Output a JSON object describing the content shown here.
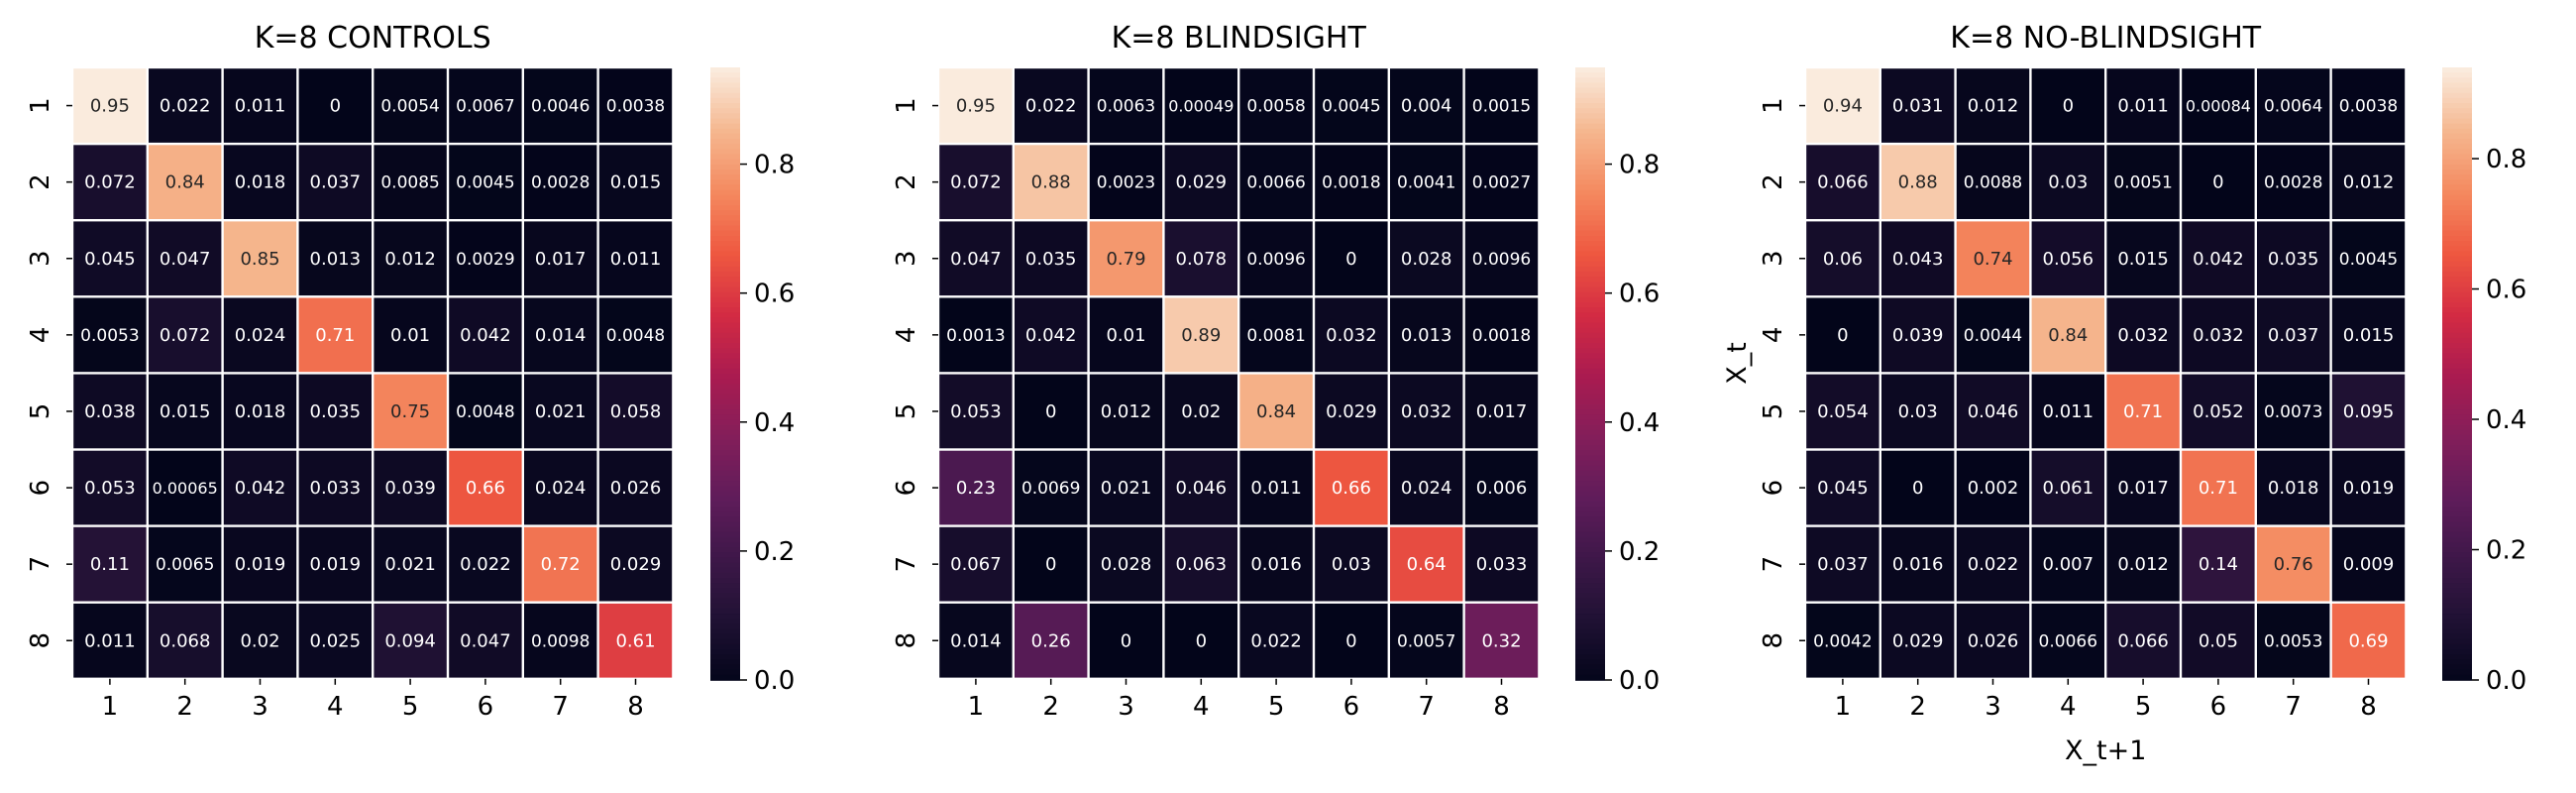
{
  "chart_data": [
    {
      "type": "heatmap",
      "title": "K=8 CONTROLS",
      "xlabel": "",
      "ylabel": "",
      "x_ticks": [
        "1",
        "2",
        "3",
        "4",
        "5",
        "6",
        "7",
        "8"
      ],
      "y_ticks": [
        "1",
        "2",
        "3",
        "4",
        "5",
        "6",
        "7",
        "8"
      ],
      "colorbar_ticks": [
        "0.0",
        "0.2",
        "0.4",
        "0.6",
        "0.8"
      ],
      "vmin": 0,
      "vmax": 0.95,
      "values": [
        [
          0.95,
          0.022,
          0.011,
          0,
          0.0054,
          0.0067,
          0.0046,
          0.0038
        ],
        [
          0.072,
          0.84,
          0.018,
          0.037,
          0.0085,
          0.0045,
          0.0028,
          0.015
        ],
        [
          0.045,
          0.047,
          0.85,
          0.013,
          0.012,
          0.0029,
          0.017,
          0.011
        ],
        [
          0.0053,
          0.072,
          0.024,
          0.71,
          0.01,
          0.042,
          0.014,
          0.0048
        ],
        [
          0.038,
          0.015,
          0.018,
          0.035,
          0.75,
          0.0048,
          0.021,
          0.058
        ],
        [
          0.053,
          0.00065,
          0.042,
          0.033,
          0.039,
          0.66,
          0.024,
          0.026
        ],
        [
          0.11,
          0.0065,
          0.019,
          0.019,
          0.021,
          0.022,
          0.72,
          0.029
        ],
        [
          0.011,
          0.068,
          0.02,
          0.025,
          0.094,
          0.047,
          0.0098,
          0.61
        ]
      ],
      "labels": [
        [
          "0.95",
          "0.022",
          "0.011",
          "0",
          "0.0054",
          "0.0067",
          "0.0046",
          "0.0038"
        ],
        [
          "0.072",
          "0.84",
          "0.018",
          "0.037",
          "0.0085",
          "0.0045",
          "0.0028",
          "0.015"
        ],
        [
          "0.045",
          "0.047",
          "0.85",
          "0.013",
          "0.012",
          "0.0029",
          "0.017",
          "0.011"
        ],
        [
          "0.0053",
          "0.072",
          "0.024",
          "0.71",
          "0.01",
          "0.042",
          "0.014",
          "0.0048"
        ],
        [
          "0.038",
          "0.015",
          "0.018",
          "0.035",
          "0.75",
          "0.0048",
          "0.021",
          "0.058"
        ],
        [
          "0.053",
          "0.00065",
          "0.042",
          "0.033",
          "0.039",
          "0.66",
          "0.024",
          "0.026"
        ],
        [
          "0.11",
          "0.0065",
          "0.019",
          "0.019",
          "0.021",
          "0.022",
          "0.72",
          "0.029"
        ],
        [
          "0.011",
          "0.068",
          "0.02",
          "0.025",
          "0.094",
          "0.047",
          "0.0098",
          "0.61"
        ]
      ]
    },
    {
      "type": "heatmap",
      "title": "K=8 BLINDSIGHT",
      "xlabel": "",
      "ylabel": "",
      "x_ticks": [
        "1",
        "2",
        "3",
        "4",
        "5",
        "6",
        "7",
        "8"
      ],
      "y_ticks": [
        "1",
        "2",
        "3",
        "4",
        "5",
        "6",
        "7",
        "8"
      ],
      "colorbar_ticks": [
        "0.0",
        "0.2",
        "0.4",
        "0.6",
        "0.8"
      ],
      "vmin": 0,
      "vmax": 0.95,
      "values": [
        [
          0.95,
          0.022,
          0.0063,
          0.00049,
          0.0058,
          0.0045,
          0.004,
          0.0015
        ],
        [
          0.072,
          0.88,
          0.0023,
          0.029,
          0.0066,
          0.0018,
          0.0041,
          0.0027
        ],
        [
          0.047,
          0.035,
          0.79,
          0.078,
          0.0096,
          0,
          0.028,
          0.0096
        ],
        [
          0.0013,
          0.042,
          0.01,
          0.89,
          0.0081,
          0.032,
          0.013,
          0.0018
        ],
        [
          0.053,
          0,
          0.012,
          0.02,
          0.84,
          0.029,
          0.032,
          0.017
        ],
        [
          0.23,
          0.0069,
          0.021,
          0.046,
          0.011,
          0.66,
          0.024,
          0.006
        ],
        [
          0.067,
          0,
          0.028,
          0.063,
          0.016,
          0.03,
          0.64,
          0.033
        ],
        [
          0.014,
          0.26,
          0,
          0,
          0.022,
          0,
          0.0057,
          0.32
        ]
      ],
      "labels": [
        [
          "0.95",
          "0.022",
          "0.0063",
          "0.00049",
          "0.0058",
          "0.0045",
          "0.004",
          "0.0015"
        ],
        [
          "0.072",
          "0.88",
          "0.0023",
          "0.029",
          "0.0066",
          "0.0018",
          "0.0041",
          "0.0027"
        ],
        [
          "0.047",
          "0.035",
          "0.79",
          "0.078",
          "0.0096",
          "0",
          "0.028",
          "0.0096"
        ],
        [
          "0.0013",
          "0.042",
          "0.01",
          "0.89",
          "0.0081",
          "0.032",
          "0.013",
          "0.0018"
        ],
        [
          "0.053",
          "0",
          "0.012",
          "0.02",
          "0.84",
          "0.029",
          "0.032",
          "0.017"
        ],
        [
          "0.23",
          "0.0069",
          "0.021",
          "0.046",
          "0.011",
          "0.66",
          "0.024",
          "0.006"
        ],
        [
          "0.067",
          "0",
          "0.028",
          "0.063",
          "0.016",
          "0.03",
          "0.64",
          "0.033"
        ],
        [
          "0.014",
          "0.26",
          "0",
          "0",
          "0.022",
          "0",
          "0.0057",
          "0.32"
        ]
      ]
    },
    {
      "type": "heatmap",
      "title": "K=8 NO-BLINDSIGHT",
      "xlabel": "X_t+1",
      "ylabel": "X_t",
      "x_ticks": [
        "1",
        "2",
        "3",
        "4",
        "5",
        "6",
        "7",
        "8"
      ],
      "y_ticks": [
        "1",
        "2",
        "3",
        "4",
        "5",
        "6",
        "7",
        "8"
      ],
      "colorbar_ticks": [
        "0.0",
        "0.2",
        "0.4",
        "0.6",
        "0.8"
      ],
      "vmin": 0,
      "vmax": 0.94,
      "values": [
        [
          0.94,
          0.031,
          0.012,
          0,
          0.011,
          0.00084,
          0.0064,
          0.0038
        ],
        [
          0.066,
          0.88,
          0.0088,
          0.03,
          0.0051,
          0,
          0.0028,
          0.012
        ],
        [
          0.06,
          0.043,
          0.74,
          0.056,
          0.015,
          0.042,
          0.035,
          0.0045
        ],
        [
          0,
          0.039,
          0.0044,
          0.84,
          0.032,
          0.032,
          0.037,
          0.015
        ],
        [
          0.054,
          0.03,
          0.046,
          0.011,
          0.71,
          0.052,
          0.0073,
          0.095
        ],
        [
          0.045,
          0,
          0.002,
          0.061,
          0.017,
          0.71,
          0.018,
          0.019
        ],
        [
          0.037,
          0.016,
          0.022,
          0.007,
          0.012,
          0.14,
          0.76,
          0.009
        ],
        [
          0.0042,
          0.029,
          0.026,
          0.0066,
          0.066,
          0.05,
          0.0053,
          0.69
        ]
      ],
      "labels": [
        [
          "0.94",
          "0.031",
          "0.012",
          "0",
          "0.011",
          "0.00084",
          "0.0064",
          "0.0038"
        ],
        [
          "0.066",
          "0.88",
          "0.0088",
          "0.03",
          "0.0051",
          "0",
          "0.0028",
          "0.012"
        ],
        [
          "0.06",
          "0.043",
          "0.74",
          "0.056",
          "0.015",
          "0.042",
          "0.035",
          "0.0045"
        ],
        [
          "0",
          "0.039",
          "0.0044",
          "0.84",
          "0.032",
          "0.032",
          "0.037",
          "0.015"
        ],
        [
          "0.054",
          "0.03",
          "0.046",
          "0.011",
          "0.71",
          "0.052",
          "0.0073",
          "0.095"
        ],
        [
          "0.045",
          "0",
          "0.002",
          "0.061",
          "0.017",
          "0.71",
          "0.018",
          "0.019"
        ],
        [
          "0.037",
          "0.016",
          "0.022",
          "0.007",
          "0.012",
          "0.14",
          "0.76",
          "0.009"
        ],
        [
          "0.0042",
          "0.029",
          "0.026",
          "0.0066",
          "0.066",
          "0.05",
          "0.0053",
          "0.69"
        ]
      ]
    }
  ]
}
